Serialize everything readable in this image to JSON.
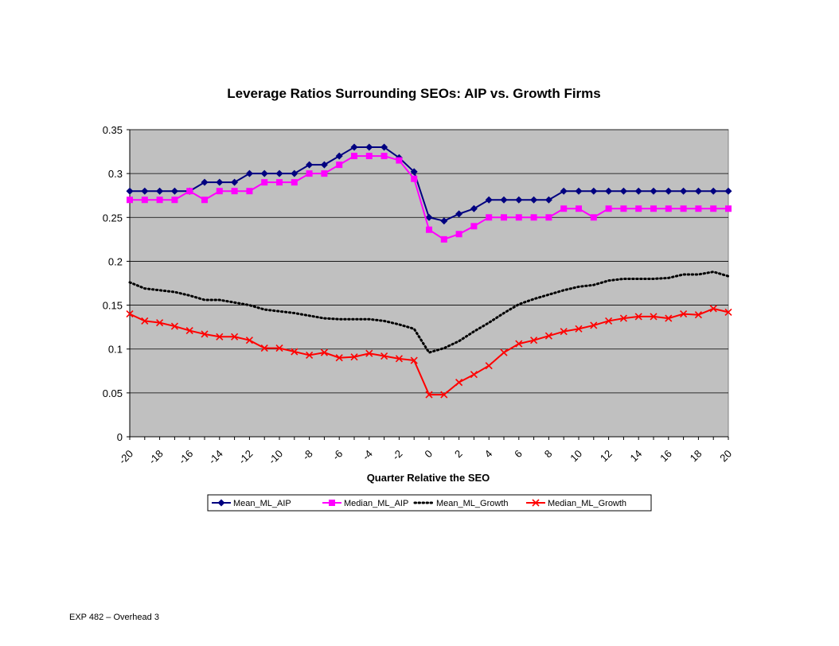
{
  "footer": "EXP 482 – Overhead 3",
  "chart_data": {
    "type": "line",
    "title": "Leverage Ratios Surrounding SEOs: AIP vs. Growth Firms",
    "xlabel": "Quarter Relative the SEO",
    "ylabel": "",
    "xlim": [
      -20,
      20
    ],
    "ylim": [
      0,
      0.35
    ],
    "grid": true,
    "legend_position": "bottom",
    "plot_background": "#c0c0c0",
    "x": [
      -20,
      -19,
      -18,
      -17,
      -16,
      -15,
      -14,
      -13,
      -12,
      -11,
      -10,
      -9,
      -8,
      -7,
      -6,
      -5,
      -4,
      -3,
      -2,
      -1,
      0,
      1,
      2,
      3,
      4,
      5,
      6,
      7,
      8,
      9,
      10,
      11,
      12,
      13,
      14,
      15,
      16,
      17,
      18,
      19,
      20
    ],
    "x_tick_labels": [
      "-20",
      "-18",
      "-16",
      "-14",
      "-12",
      "-10",
      "-8",
      "-6",
      "-4",
      "-2",
      "0",
      "2",
      "4",
      "6",
      "8",
      "10",
      "12",
      "14",
      "16",
      "18",
      "20"
    ],
    "y_tick_labels": [
      "0",
      "0.05",
      "0.1",
      "0.15",
      "0.2",
      "0.25",
      "0.3",
      "0.35"
    ],
    "series": [
      {
        "name": "Mean_ML_AIP",
        "color": "#000080",
        "marker": "diamond",
        "values": [
          0.28,
          0.28,
          0.28,
          0.28,
          0.28,
          0.29,
          0.29,
          0.29,
          0.3,
          0.3,
          0.3,
          0.3,
          0.31,
          0.31,
          0.32,
          0.33,
          0.33,
          0.33,
          0.318,
          0.302,
          0.25,
          0.246,
          0.254,
          0.26,
          0.27,
          0.27,
          0.27,
          0.27,
          0.27,
          0.28,
          0.28,
          0.28,
          0.28,
          0.28,
          0.28,
          0.28,
          0.28,
          0.28,
          0.28,
          0.28,
          0.28
        ]
      },
      {
        "name": "Median_ML_AIP",
        "color": "#ff00ff",
        "marker": "square",
        "values": [
          0.27,
          0.27,
          0.27,
          0.27,
          0.28,
          0.27,
          0.28,
          0.28,
          0.28,
          0.29,
          0.29,
          0.29,
          0.3,
          0.3,
          0.31,
          0.32,
          0.32,
          0.32,
          0.315,
          0.294,
          0.236,
          0.225,
          0.231,
          0.24,
          0.25,
          0.25,
          0.25,
          0.25,
          0.25,
          0.26,
          0.26,
          0.25,
          0.26,
          0.26,
          0.26,
          0.26,
          0.26,
          0.26,
          0.26,
          0.26,
          0.26
        ]
      },
      {
        "name": "Mean_ML_Growth",
        "color": "#000000",
        "marker": "none",
        "dashed": true,
        "values": [
          0.176,
          0.169,
          0.167,
          0.165,
          0.161,
          0.156,
          0.156,
          0.153,
          0.15,
          0.145,
          0.143,
          0.141,
          0.138,
          0.135,
          0.134,
          0.134,
          0.134,
          0.132,
          0.128,
          0.123,
          0.096,
          0.101,
          0.109,
          0.12,
          0.13,
          0.141,
          0.151,
          0.157,
          0.162,
          0.167,
          0.171,
          0.173,
          0.178,
          0.18,
          0.18,
          0.18,
          0.181,
          0.185,
          0.185,
          0.188,
          0.183
        ]
      },
      {
        "name": "Median_ML_Growth",
        "color": "#ff0000",
        "marker": "x",
        "values": [
          0.14,
          0.132,
          0.13,
          0.126,
          0.121,
          0.117,
          0.114,
          0.114,
          0.11,
          0.101,
          0.101,
          0.097,
          0.093,
          0.096,
          0.09,
          0.091,
          0.095,
          0.092,
          0.089,
          0.087,
          0.048,
          0.048,
          0.062,
          0.071,
          0.081,
          0.096,
          0.106,
          0.11,
          0.115,
          0.12,
          0.123,
          0.127,
          0.132,
          0.135,
          0.137,
          0.137,
          0.135,
          0.14,
          0.139,
          0.146,
          0.142
        ]
      }
    ]
  }
}
